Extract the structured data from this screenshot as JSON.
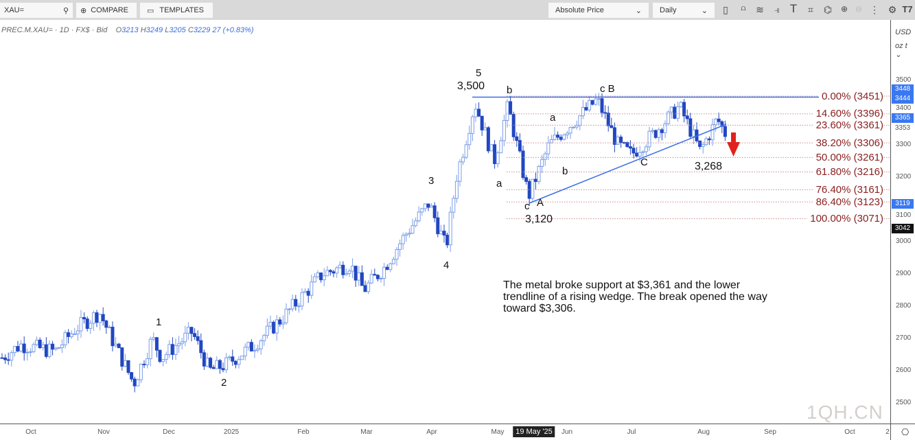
{
  "toolbar": {
    "search_value": "XAU=",
    "compare": "COMPARE",
    "templates": "TEMPLATES",
    "price_mode": "Absolute Price",
    "interval": "Daily",
    "icons": [
      "candles-icon",
      "indicators-icon",
      "studies-icon",
      "drawing-icon",
      "text-icon",
      "shapes-icon",
      "pattern-icon",
      "zoom-in-icon",
      "zoom-out-icon",
      "more-icon",
      "settings-icon",
      "tradingview-logo-icon"
    ]
  },
  "legend": {
    "symbol": "PREC.M.XAU= · 1D · FX$ · Bid",
    "open_label": "O",
    "open": "3213",
    "high_label": "H",
    "high": "3249",
    "low_label": "L",
    "low": "3205",
    "close_label": "C",
    "close": "3229",
    "change": "27 (+0.83%)"
  },
  "axis_units": {
    "currency": "USD ⌄",
    "unit": "oz t ⌄"
  },
  "colors": {
    "up": "#ffffff",
    "up_border": "#7a9de8",
    "down": "#2247c0",
    "fib": "#8b2020",
    "trend": "#3a6ee8",
    "arrow": "#e0231c"
  },
  "chart_data": {
    "type": "candlestick",
    "y_ticks": [
      3500,
      3400,
      3300,
      3200,
      3100,
      3000,
      2900,
      2800,
      2700,
      2600,
      2500
    ],
    "ylim": [
      2450,
      3600
    ],
    "x_ticks": [
      "Oct",
      "Nov",
      "Dec",
      "2025",
      "Feb",
      "Mar",
      "Apr",
      "May",
      "19 May '25",
      "Jun",
      "Jul",
      "Aug",
      "Sep",
      "Oct",
      "2"
    ],
    "price_badges": [
      {
        "v": "3448",
        "c": "blue"
      },
      {
        "v": "3444",
        "c": "blue"
      },
      {
        "v": "3365",
        "c": "blue"
      },
      {
        "v": "3353",
        "c": "text"
      },
      {
        "v": "3119",
        "c": "blue"
      },
      {
        "v": "3042",
        "c": "black"
      }
    ],
    "path_prices": [
      2640,
      2680,
      2660,
      2730,
      2780,
      2690,
      2560,
      2700,
      2640,
      2720,
      2600,
      2620,
      2680,
      2760,
      2900,
      2930,
      2850,
      2920,
      3020,
      3120,
      2980,
      3200,
      3430,
      3250,
      3420,
      3140,
      3300,
      3360,
      3440,
      3300,
      3270,
      3330,
      3420,
      3280,
      3380,
      3330
    ],
    "fib_levels": [
      {
        "label": "0.00% (3451)",
        "price": 3451
      },
      {
        "label": "14.60% (3396)",
        "price": 3396
      },
      {
        "label": "23.60% (3361)",
        "price": 3361
      },
      {
        "label": "38.20% (3306)",
        "price": 3306
      },
      {
        "label": "50.00% (3261)",
        "price": 3261
      },
      {
        "label": "61.80% (3216)",
        "price": 3216
      },
      {
        "label": "76.40% (3161)",
        "price": 3161
      },
      {
        "label": "86.40% (3123)",
        "price": 3123
      },
      {
        "label": "100.00% (3071)",
        "price": 3071
      }
    ],
    "resistance_price": 3448,
    "waves": [
      "5",
      "3,500",
      "b",
      "c B",
      "a",
      "a",
      "b",
      "c",
      "A",
      "3,120",
      "C",
      "3,268",
      "3",
      "4",
      "1",
      "2"
    ],
    "annotation": "The metal broke support at $3,361 and the lower trendline of a rising wedge. The break opened the way toward $3,306."
  },
  "watermark": "1QH.CN"
}
